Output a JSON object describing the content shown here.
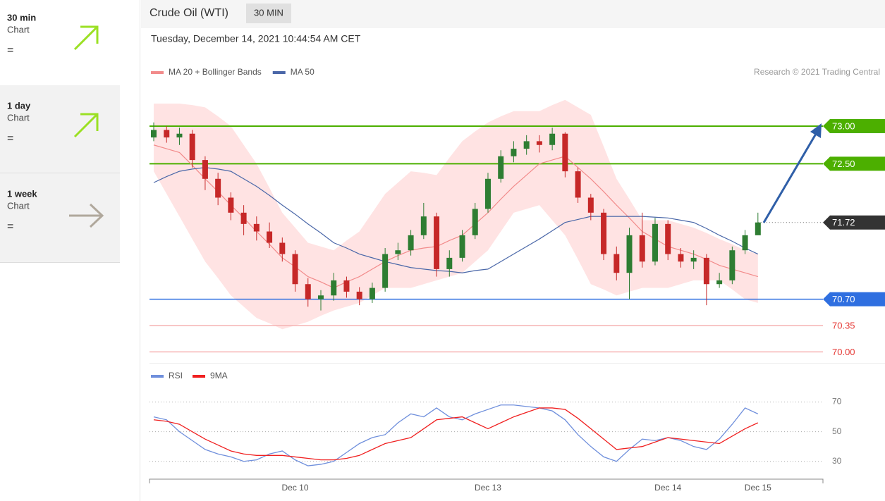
{
  "sidebar": [
    {
      "period": "30 min",
      "kind": "Chart",
      "sign": "="
    },
    {
      "period": "1 day",
      "kind": "Chart",
      "sign": "="
    },
    {
      "period": "1 week",
      "kind": "Chart",
      "sign": "="
    }
  ],
  "header": {
    "title": "Crude Oil (WTI)",
    "badge": "30 MIN",
    "date": "Tuesday, December 14, 2021 10:44:54 AM CET"
  },
  "chart_data": [
    {
      "type": "candlestick",
      "source": "Research © 2021 Trading Central",
      "ylim": [
        69.9,
        73.6
      ],
      "ohlc": {
        "up_color": "#2e7d32",
        "down_color": "#c62828",
        "open": [
          72.85,
          72.95,
          72.85,
          72.9,
          72.55,
          72.3,
          72.05,
          71.85,
          71.7,
          71.6,
          71.45,
          71.3,
          70.9,
          70.7,
          70.75,
          70.95,
          70.8,
          70.7,
          70.85,
          71.3,
          71.35,
          71.55,
          71.8,
          71.1,
          71.25,
          71.55,
          71.9,
          72.3,
          72.6,
          72.7,
          72.8,
          72.75,
          72.9,
          72.4,
          72.05,
          71.85,
          71.3,
          71.05,
          71.55,
          71.2,
          71.7,
          71.3,
          71.2,
          71.25,
          70.9,
          70.95,
          71.35,
          71.55
        ],
        "high": [
          73.05,
          73.0,
          72.98,
          72.95,
          72.6,
          72.38,
          72.12,
          71.95,
          71.8,
          71.72,
          71.52,
          71.35,
          70.98,
          70.82,
          71.05,
          71.0,
          70.86,
          70.92,
          71.38,
          71.45,
          71.62,
          71.98,
          71.85,
          71.35,
          71.62,
          71.98,
          72.38,
          72.68,
          72.8,
          72.88,
          72.88,
          72.98,
          72.92,
          72.45,
          72.1,
          71.9,
          71.4,
          71.65,
          71.85,
          71.78,
          71.75,
          71.38,
          71.35,
          71.3,
          71.05,
          71.4,
          71.62,
          71.85
        ],
        "low": [
          72.8,
          72.78,
          72.75,
          72.45,
          72.15,
          71.95,
          71.75,
          71.55,
          71.48,
          71.38,
          71.2,
          70.8,
          70.6,
          70.55,
          70.68,
          70.72,
          70.62,
          70.65,
          70.8,
          71.22,
          71.28,
          71.5,
          71.0,
          71.0,
          71.2,
          71.5,
          71.85,
          72.25,
          72.52,
          72.62,
          72.65,
          72.68,
          72.32,
          71.98,
          71.75,
          71.22,
          70.95,
          70.7,
          71.12,
          71.15,
          71.22,
          71.12,
          71.1,
          70.62,
          70.85,
          70.9,
          71.3,
          71.68
        ],
        "close": [
          72.95,
          72.85,
          72.9,
          72.55,
          72.3,
          72.05,
          71.85,
          71.7,
          71.6,
          71.45,
          71.3,
          70.9,
          70.7,
          70.75,
          70.95,
          70.8,
          70.7,
          70.85,
          71.3,
          71.35,
          71.55,
          71.8,
          71.1,
          71.25,
          71.55,
          71.9,
          72.3,
          72.6,
          72.7,
          72.8,
          72.75,
          72.9,
          72.4,
          72.05,
          71.85,
          71.3,
          71.05,
          71.55,
          71.2,
          71.7,
          71.3,
          71.2,
          71.25,
          70.9,
          70.95,
          71.35,
          71.55,
          71.72
        ]
      },
      "series": [
        {
          "name": "MA 20 + Bollinger Bands",
          "color": "#f28b8b",
          "band_color": "#ffdcdc",
          "values": [
            72.75,
            72.7,
            72.65,
            72.48,
            72.3,
            72.13,
            71.95,
            71.78,
            71.6,
            71.43,
            71.25,
            71.13,
            71.0,
            70.93,
            70.85,
            70.93,
            71.0,
            71.1,
            71.2,
            71.28,
            71.35,
            71.38,
            71.4,
            71.48,
            71.55,
            71.7,
            71.85,
            72.03,
            72.2,
            72.35,
            72.5,
            72.55,
            72.6,
            72.45,
            72.3,
            72.13,
            71.95,
            71.78,
            71.6,
            71.5,
            71.4,
            71.35,
            71.3,
            71.23,
            71.15,
            71.1,
            71.05,
            71.0
          ],
          "upper": [
            73.3,
            73.3,
            73.3,
            73.28,
            73.25,
            73.13,
            73.0,
            72.75,
            72.5,
            72.18,
            71.85,
            71.65,
            71.45,
            71.4,
            71.35,
            71.48,
            71.6,
            71.85,
            72.1,
            72.25,
            72.4,
            72.38,
            72.35,
            72.58,
            72.8,
            72.93,
            73.05,
            73.13,
            73.2,
            73.2,
            73.2,
            73.28,
            73.35,
            73.25,
            73.15,
            72.73,
            72.3,
            72.03,
            71.75,
            71.75,
            71.75,
            71.7,
            71.65,
            71.58,
            71.5,
            71.43,
            71.35,
            71.3
          ],
          "lower": [
            72.4,
            72.1,
            71.8,
            71.5,
            71.2,
            70.98,
            70.75,
            70.6,
            70.45,
            70.38,
            70.3,
            70.35,
            70.4,
            70.48,
            70.55,
            70.6,
            70.65,
            70.75,
            70.85,
            70.85,
            70.85,
            70.9,
            70.95,
            71.0,
            71.05,
            71.2,
            71.35,
            71.6,
            71.85,
            71.9,
            71.95,
            71.75,
            71.55,
            71.23,
            70.9,
            70.83,
            70.75,
            70.8,
            70.85,
            70.85,
            70.85,
            70.9,
            70.95,
            70.95,
            70.95,
            70.83,
            70.7,
            70.65
          ]
        },
        {
          "name": "MA 50",
          "color": "#4a67a8",
          "values": [
            72.25,
            72.33,
            72.4,
            72.43,
            72.45,
            72.43,
            72.4,
            72.3,
            72.2,
            72.08,
            71.95,
            71.83,
            71.7,
            71.58,
            71.45,
            71.38,
            71.3,
            71.25,
            71.2,
            71.16,
            71.12,
            71.1,
            71.08,
            71.07,
            71.05,
            71.08,
            71.1,
            71.2,
            71.3,
            71.4,
            71.5,
            71.61,
            71.72,
            71.76,
            71.8,
            71.8,
            71.8,
            71.8,
            71.8,
            71.79,
            71.78,
            71.75,
            71.72,
            71.64,
            71.55,
            71.47,
            71.38,
            71.3
          ]
        }
      ],
      "levels": [
        {
          "value": 73,
          "label": "73.00",
          "color": "#4caf00",
          "line": "solid",
          "box": true
        },
        {
          "value": 72.5,
          "label": "72.50",
          "color": "#4caf00",
          "line": "solid",
          "box": true
        },
        {
          "value": 71.72,
          "label": "71.72",
          "color": "#333333",
          "line": "dotted",
          "box": true
        },
        {
          "value": 70.7,
          "label": "70.70",
          "color": "#2f6fe0",
          "line": "solid",
          "box": true
        },
        {
          "value": 70.35,
          "label": "70.35",
          "color": "#e53935",
          "line": "faint",
          "box": false
        },
        {
          "value": 70,
          "label": "70.00",
          "color": "#e53935",
          "line": "faint",
          "box": false
        }
      ]
    },
    {
      "type": "line",
      "ylim": [
        18,
        75
      ],
      "yticks": [
        30,
        50,
        70
      ],
      "grid": true,
      "categories": [
        null,
        null,
        null,
        null,
        null,
        null,
        null,
        null,
        null,
        null,
        null,
        "Dec 10",
        null,
        null,
        null,
        null,
        null,
        null,
        null,
        null,
        null,
        null,
        null,
        null,
        null,
        null,
        "Dec 13",
        null,
        null,
        null,
        null,
        null,
        null,
        null,
        null,
        null,
        null,
        null,
        null,
        null,
        "Dec 14",
        null,
        null,
        null,
        null,
        null,
        null,
        "Dec 15"
      ],
      "series": [
        {
          "name": "RSI",
          "color": "#6f8fdc",
          "values": [
            60,
            58,
            50,
            44,
            38,
            35,
            33,
            30,
            31,
            35,
            37,
            31,
            27,
            28,
            30,
            36,
            42,
            46,
            48,
            56,
            62,
            60,
            66,
            60,
            58,
            62,
            65,
            68,
            68,
            67,
            66,
            64,
            58,
            48,
            40,
            33,
            30,
            38,
            45,
            44,
            46,
            44,
            40,
            38,
            45,
            55,
            66,
            62
          ]
        },
        {
          "name": "9MA",
          "color": "#f02020",
          "values": [
            58,
            57,
            55,
            50,
            45,
            41,
            37,
            35,
            34,
            34,
            34,
            33,
            32,
            31,
            31,
            32,
            34,
            38,
            42,
            44,
            46,
            52,
            58,
            59,
            60,
            56,
            52,
            56,
            60,
            63,
            66,
            66,
            65,
            59,
            52,
            45,
            38,
            39,
            40,
            43,
            46,
            45,
            44,
            43,
            42,
            47,
            52,
            56
          ]
        }
      ]
    }
  ]
}
